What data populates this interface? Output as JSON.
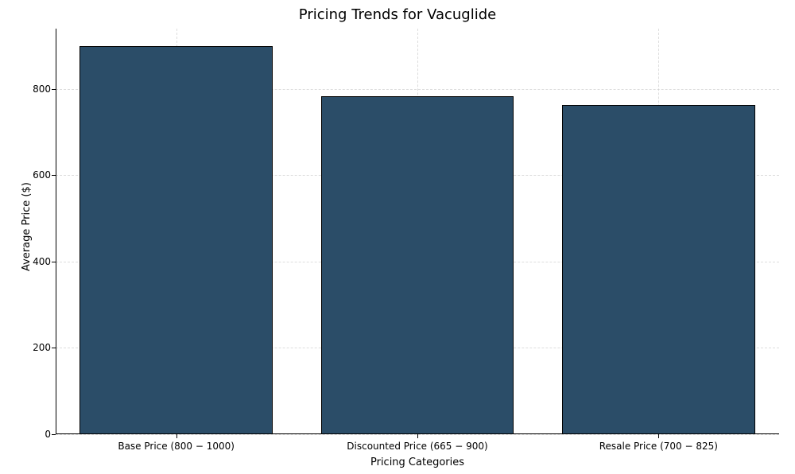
{
  "chart": {
    "type": "bar",
    "title": "Pricing Trends for Vacuglide",
    "title_fontsize": 18,
    "title_color": "#000000",
    "xlabel": "Pricing Categories",
    "ylabel": "Average Price ($)",
    "label_fontsize": 13,
    "categories": [
      "Base Price (800 − 1000)",
      "Discounted Price (665 − 900)",
      "Resale Price (700 − 825)"
    ],
    "values": [
      900,
      782.5,
      762.5
    ],
    "bar_color": "#2B4D68",
    "bar_edge_color": "#000000",
    "bar_width": 0.8,
    "background_color": "#ffffff",
    "grid_color": "#d0d0d0",
    "grid_dash": "dashed",
    "grid_alpha": 0.7,
    "xlim": [
      -0.5,
      2.5
    ],
    "ylim": [
      0,
      940
    ],
    "yticks": [
      0,
      200,
      400,
      600,
      800
    ],
    "tick_fontsize": 12,
    "spine_top": false,
    "spine_right": false
  }
}
